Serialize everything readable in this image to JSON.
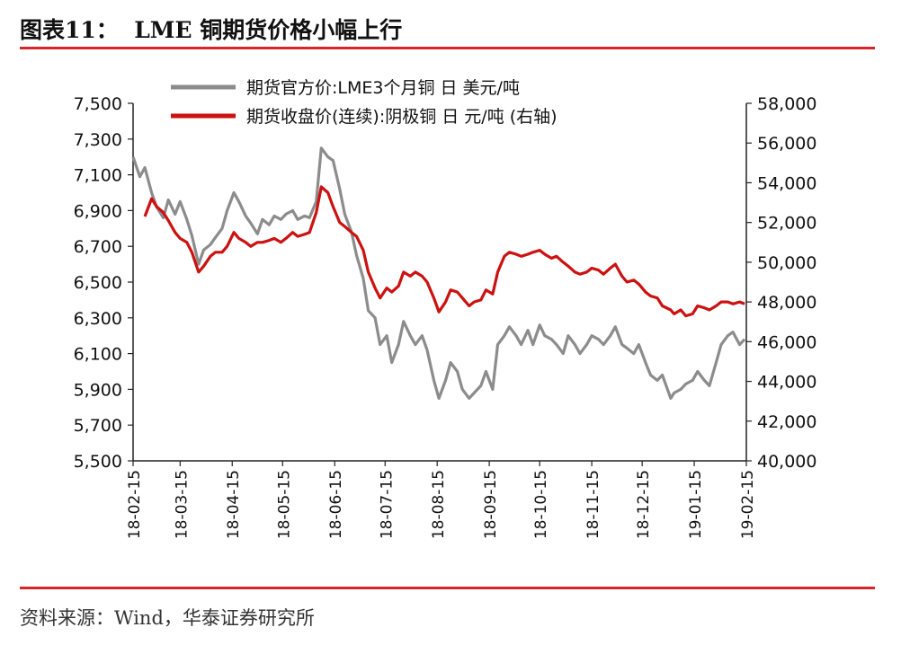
{
  "title": "图表11：  LME 铜期货价格小幅上行",
  "source": "资料来源：Wind，华泰证券研究所",
  "colors": {
    "accent": "#d9242a",
    "series_lme": "#8c8c8c",
    "series_shfe": "#cc1111"
  },
  "chart_data": {
    "type": "line",
    "legend_position": "top",
    "grid": false,
    "x_ticks": [
      "18-02-15",
      "18-03-15",
      "18-04-15",
      "18-05-15",
      "18-06-15",
      "18-07-15",
      "18-08-15",
      "18-09-15",
      "18-10-15",
      "18-11-15",
      "18-12-15",
      "19-01-15",
      "19-02-15"
    ],
    "y_left": {
      "min": 5500,
      "max": 7500,
      "ticks": [
        "5,500",
        "5,700",
        "5,900",
        "6,100",
        "6,300",
        "6,500",
        "6,700",
        "6,900",
        "7,100",
        "7,300",
        "7,500"
      ]
    },
    "y_right": {
      "min": 40000,
      "max": 58000,
      "ticks": [
        "40,000",
        "42,000",
        "44,000",
        "46,000",
        "48,000",
        "50,000",
        "52,000",
        "54,000",
        "56,000",
        "58,000"
      ]
    },
    "series": [
      {
        "name": "期货官方价:LME3个月铜 日 美元/吨",
        "axis": "left",
        "points": [
          [
            "2018-02-15",
            7200
          ],
          [
            "2018-02-19",
            7090
          ],
          [
            "2018-02-22",
            7140
          ],
          [
            "2018-02-26",
            7000
          ],
          [
            "2018-03-01",
            6920
          ],
          [
            "2018-03-05",
            6860
          ],
          [
            "2018-03-08",
            6960
          ],
          [
            "2018-03-12",
            6880
          ],
          [
            "2018-03-15",
            6950
          ],
          [
            "2018-03-19",
            6850
          ],
          [
            "2018-03-22",
            6760
          ],
          [
            "2018-03-26",
            6600
          ],
          [
            "2018-03-29",
            6680
          ],
          [
            "2018-04-02",
            6710
          ],
          [
            "2018-04-05",
            6750
          ],
          [
            "2018-04-09",
            6800
          ],
          [
            "2018-04-12",
            6900
          ],
          [
            "2018-04-16",
            7000
          ],
          [
            "2018-04-19",
            6950
          ],
          [
            "2018-04-23",
            6870
          ],
          [
            "2018-04-26",
            6830
          ],
          [
            "2018-04-30",
            6770
          ],
          [
            "2018-05-03",
            6850
          ],
          [
            "2018-05-07",
            6820
          ],
          [
            "2018-05-10",
            6870
          ],
          [
            "2018-05-14",
            6850
          ],
          [
            "2018-05-17",
            6880
          ],
          [
            "2018-05-21",
            6900
          ],
          [
            "2018-05-24",
            6850
          ],
          [
            "2018-05-28",
            6870
          ],
          [
            "2018-05-31",
            6860
          ],
          [
            "2018-06-04",
            6950
          ],
          [
            "2018-06-07",
            7250
          ],
          [
            "2018-06-11",
            7200
          ],
          [
            "2018-06-14",
            7180
          ],
          [
            "2018-06-18",
            7020
          ],
          [
            "2018-06-21",
            6880
          ],
          [
            "2018-06-25",
            6780
          ],
          [
            "2018-06-28",
            6650
          ],
          [
            "2018-07-02",
            6520
          ],
          [
            "2018-07-05",
            6340
          ],
          [
            "2018-07-09",
            6300
          ],
          [
            "2018-07-12",
            6150
          ],
          [
            "2018-07-16",
            6200
          ],
          [
            "2018-07-19",
            6050
          ],
          [
            "2018-07-23",
            6150
          ],
          [
            "2018-07-26",
            6280
          ],
          [
            "2018-07-30",
            6200
          ],
          [
            "2018-08-02",
            6150
          ],
          [
            "2018-08-06",
            6200
          ],
          [
            "2018-08-09",
            6120
          ],
          [
            "2018-08-13",
            5950
          ],
          [
            "2018-08-16",
            5850
          ],
          [
            "2018-08-20",
            5950
          ],
          [
            "2018-08-23",
            6050
          ],
          [
            "2018-08-27",
            6000
          ],
          [
            "2018-08-30",
            5900
          ],
          [
            "2018-09-03",
            5850
          ],
          [
            "2018-09-06",
            5880
          ],
          [
            "2018-09-10",
            5920
          ],
          [
            "2018-09-13",
            6000
          ],
          [
            "2018-09-17",
            5900
          ],
          [
            "2018-09-20",
            6150
          ],
          [
            "2018-09-24",
            6200
          ],
          [
            "2018-09-27",
            6250
          ],
          [
            "2018-10-01",
            6200
          ],
          [
            "2018-10-04",
            6150
          ],
          [
            "2018-10-08",
            6230
          ],
          [
            "2018-10-11",
            6150
          ],
          [
            "2018-10-15",
            6260
          ],
          [
            "2018-10-18",
            6200
          ],
          [
            "2018-10-22",
            6180
          ],
          [
            "2018-10-25",
            6150
          ],
          [
            "2018-10-29",
            6100
          ],
          [
            "2018-11-01",
            6200
          ],
          [
            "2018-11-05",
            6150
          ],
          [
            "2018-11-08",
            6100
          ],
          [
            "2018-11-12",
            6150
          ],
          [
            "2018-11-15",
            6200
          ],
          [
            "2018-11-19",
            6180
          ],
          [
            "2018-11-22",
            6150
          ],
          [
            "2018-11-26",
            6200
          ],
          [
            "2018-11-29",
            6250
          ],
          [
            "2018-12-03",
            6150
          ],
          [
            "2018-12-06",
            6130
          ],
          [
            "2018-12-10",
            6100
          ],
          [
            "2018-12-13",
            6150
          ],
          [
            "2018-12-17",
            6050
          ],
          [
            "2018-12-20",
            5980
          ],
          [
            "2018-12-24",
            5950
          ],
          [
            "2018-12-27",
            5980
          ],
          [
            "2019-01-01",
            5850
          ],
          [
            "2019-01-03",
            5880
          ],
          [
            "2019-01-07",
            5900
          ],
          [
            "2019-01-10",
            5930
          ],
          [
            "2019-01-14",
            5950
          ],
          [
            "2019-01-17",
            6000
          ],
          [
            "2019-01-21",
            5950
          ],
          [
            "2019-01-24",
            5920
          ],
          [
            "2019-01-28",
            6050
          ],
          [
            "2019-01-31",
            6150
          ],
          [
            "2019-02-04",
            6200
          ],
          [
            "2019-02-07",
            6220
          ],
          [
            "2019-02-11",
            6150
          ],
          [
            "2019-02-14",
            6180
          ]
        ]
      },
      {
        "name": "期货收盘价(连续):阴极铜 日 元/吨 (右轴)",
        "axis": "right",
        "points": [
          [
            "2018-02-22",
            52300
          ],
          [
            "2018-02-26",
            53200
          ],
          [
            "2018-03-01",
            52800
          ],
          [
            "2018-03-05",
            52500
          ],
          [
            "2018-03-08",
            52100
          ],
          [
            "2018-03-12",
            51500
          ],
          [
            "2018-03-15",
            51200
          ],
          [
            "2018-03-19",
            51000
          ],
          [
            "2018-03-22",
            50500
          ],
          [
            "2018-03-26",
            49500
          ],
          [
            "2018-03-29",
            49800
          ],
          [
            "2018-04-02",
            50300
          ],
          [
            "2018-04-05",
            50500
          ],
          [
            "2018-04-09",
            50500
          ],
          [
            "2018-04-12",
            50800
          ],
          [
            "2018-04-16",
            51500
          ],
          [
            "2018-04-19",
            51200
          ],
          [
            "2018-04-23",
            51000
          ],
          [
            "2018-04-26",
            50800
          ],
          [
            "2018-04-30",
            51000
          ],
          [
            "2018-05-03",
            51000
          ],
          [
            "2018-05-07",
            51100
          ],
          [
            "2018-05-10",
            51200
          ],
          [
            "2018-05-14",
            51000
          ],
          [
            "2018-05-17",
            51200
          ],
          [
            "2018-05-21",
            51500
          ],
          [
            "2018-05-24",
            51300
          ],
          [
            "2018-05-28",
            51400
          ],
          [
            "2018-05-31",
            51500
          ],
          [
            "2018-06-04",
            52500
          ],
          [
            "2018-06-07",
            53800
          ],
          [
            "2018-06-11",
            53500
          ],
          [
            "2018-06-14",
            52800
          ],
          [
            "2018-06-18",
            52000
          ],
          [
            "2018-06-21",
            51800
          ],
          [
            "2018-06-25",
            51500
          ],
          [
            "2018-06-28",
            51300
          ],
          [
            "2018-07-02",
            50600
          ],
          [
            "2018-07-05",
            49500
          ],
          [
            "2018-07-09",
            48700
          ],
          [
            "2018-07-12",
            48200
          ],
          [
            "2018-07-16",
            48700
          ],
          [
            "2018-07-19",
            48500
          ],
          [
            "2018-07-23",
            48800
          ],
          [
            "2018-07-26",
            49500
          ],
          [
            "2018-07-30",
            49300
          ],
          [
            "2018-08-02",
            49500
          ],
          [
            "2018-08-06",
            49300
          ],
          [
            "2018-08-09",
            49000
          ],
          [
            "2018-08-13",
            48200
          ],
          [
            "2018-08-16",
            47500
          ],
          [
            "2018-08-20",
            48000
          ],
          [
            "2018-08-23",
            48600
          ],
          [
            "2018-08-27",
            48500
          ],
          [
            "2018-08-30",
            48200
          ],
          [
            "2018-09-03",
            47800
          ],
          [
            "2018-09-06",
            48000
          ],
          [
            "2018-09-10",
            48100
          ],
          [
            "2018-09-13",
            48600
          ],
          [
            "2018-09-17",
            48400
          ],
          [
            "2018-09-20",
            49500
          ],
          [
            "2018-09-24",
            50300
          ],
          [
            "2018-09-27",
            50500
          ],
          [
            "2018-10-01",
            50400
          ],
          [
            "2018-10-04",
            50300
          ],
          [
            "2018-10-08",
            50400
          ],
          [
            "2018-10-11",
            50500
          ],
          [
            "2018-10-15",
            50600
          ],
          [
            "2018-10-18",
            50400
          ],
          [
            "2018-10-22",
            50200
          ],
          [
            "2018-10-25",
            50300
          ],
          [
            "2018-10-29",
            50000
          ],
          [
            "2018-11-01",
            49800
          ],
          [
            "2018-11-05",
            49500
          ],
          [
            "2018-11-08",
            49400
          ],
          [
            "2018-11-12",
            49500
          ],
          [
            "2018-11-15",
            49700
          ],
          [
            "2018-11-19",
            49600
          ],
          [
            "2018-11-22",
            49400
          ],
          [
            "2018-11-26",
            49700
          ],
          [
            "2018-11-29",
            49900
          ],
          [
            "2018-12-03",
            49300
          ],
          [
            "2018-12-06",
            49000
          ],
          [
            "2018-12-10",
            49100
          ],
          [
            "2018-12-13",
            48900
          ],
          [
            "2018-12-17",
            48500
          ],
          [
            "2018-12-20",
            48300
          ],
          [
            "2018-12-24",
            48200
          ],
          [
            "2018-12-27",
            47800
          ],
          [
            "2019-01-01",
            47600
          ],
          [
            "2019-01-03",
            47400
          ],
          [
            "2019-01-07",
            47600
          ],
          [
            "2019-01-10",
            47300
          ],
          [
            "2019-01-14",
            47400
          ],
          [
            "2019-01-17",
            47800
          ],
          [
            "2019-01-21",
            47700
          ],
          [
            "2019-01-24",
            47600
          ],
          [
            "2019-01-28",
            47800
          ],
          [
            "2019-01-31",
            48000
          ],
          [
            "2019-02-04",
            48000
          ],
          [
            "2019-02-07",
            47900
          ],
          [
            "2019-02-11",
            48000
          ],
          [
            "2019-02-14",
            47900
          ]
        ]
      }
    ]
  }
}
